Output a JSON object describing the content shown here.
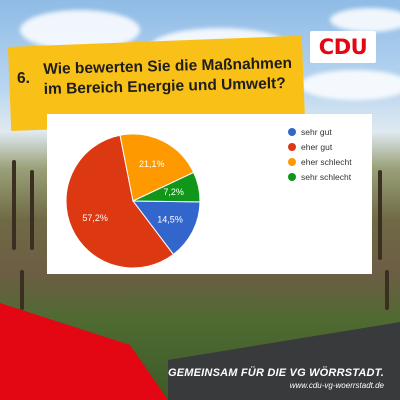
{
  "brand": {
    "logo_text": "CDU",
    "red": "#e30613",
    "yellow": "#f9c118",
    "dark": "#393a3c"
  },
  "question": {
    "number": "6.",
    "text": "Wie bewerten Sie die Maßnahmen im Bereich Energie und Umwelt?"
  },
  "chart_data": {
    "type": "pie",
    "title": "",
    "slices": [
      {
        "label": "sehr gut",
        "value": 14.5,
        "value_label": "14,5%",
        "color": "#3366cc"
      },
      {
        "label": "eher gut",
        "value": 57.2,
        "value_label": "57,2%",
        "color": "#dc3912"
      },
      {
        "label": "eher schlecht",
        "value": 21.1,
        "value_label": "21,1%",
        "color": "#ff9900"
      },
      {
        "label": "sehr schlecht",
        "value": 7.2,
        "value_label": "7,2%",
        "color": "#109618"
      }
    ],
    "legend_position": "top-right"
  },
  "footer": {
    "tagline": "GEMEINSAM FÜR DIE VG WÖRRSTADT.",
    "url": "www.cdu-vg-woerrstadt.de"
  }
}
